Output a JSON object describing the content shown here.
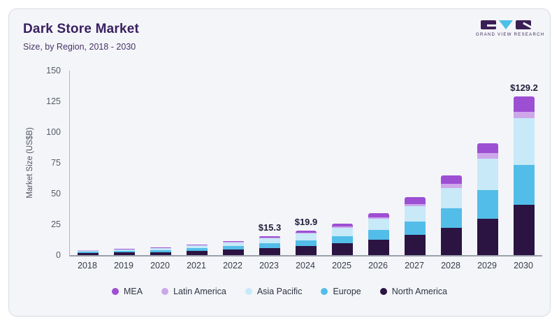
{
  "header": {
    "title": "Dark Store Market",
    "subtitle": "Size, by Region, 2018 - 2030"
  },
  "brand": {
    "logo_text": "GRAND VIEW RESEARCH",
    "logo_purple": "#3a1f55",
    "logo_cyan": "#49c1e8"
  },
  "chart_data": {
    "type": "bar",
    "stacked": true,
    "title": "Dark Store Market",
    "subtitle": "Size, by Region, 2018 - 2030",
    "xlabel": "",
    "ylabel": "Market Size (US$B)",
    "ylim": [
      0,
      150
    ],
    "yticks": [
      0,
      25,
      50,
      75,
      100,
      125,
      150
    ],
    "grid": false,
    "legend_position": "bottom",
    "categories": [
      "2018",
      "2019",
      "2020",
      "2021",
      "2022",
      "2023",
      "2024",
      "2025",
      "2026",
      "2027",
      "2028",
      "2029",
      "2030"
    ],
    "series": [
      {
        "name": "North America",
        "color": "#2b1342",
        "values": [
          1.7,
          2.0,
          2.5,
          3.5,
          4.5,
          5.9,
          7.6,
          9.6,
          12.6,
          16.5,
          22.0,
          29.5,
          41.0
        ]
      },
      {
        "name": "Europe",
        "color": "#52bde8",
        "values": [
          1.0,
          1.2,
          1.5,
          2.1,
          2.7,
          3.6,
          4.6,
          5.9,
          7.8,
          11.0,
          16.0,
          23.5,
          32.5
        ]
      },
      {
        "name": "Asia Pacific",
        "color": "#c7e9f8",
        "values": [
          1.0,
          1.2,
          1.5,
          2.2,
          2.9,
          3.9,
          5.2,
          6.7,
          9.0,
          12.2,
          16.5,
          25.5,
          38.0
        ]
      },
      {
        "name": "Latin America",
        "color": "#cda7ea",
        "values": [
          0.2,
          0.2,
          0.3,
          0.4,
          0.5,
          0.7,
          0.9,
          1.1,
          1.5,
          2.0,
          3.2,
          4.3,
          5.2
        ]
      },
      {
        "name": "MEA",
        "color": "#9d4fd4",
        "values": [
          0.3,
          0.3,
          0.5,
          0.6,
          0.9,
          1.2,
          1.6,
          2.2,
          3.1,
          5.3,
          7.3,
          8.2,
          12.5
        ]
      }
    ],
    "totals": [
      4.2,
      4.9,
      6.3,
      8.8,
      11.5,
      15.3,
      19.9,
      25.5,
      34.0,
      47.0,
      65.0,
      91.0,
      129.2
    ],
    "annotations": [
      {
        "category": "2023",
        "label": "$15.3"
      },
      {
        "category": "2024",
        "label": "$19.9"
      },
      {
        "category": "2030",
        "label": "$129.2"
      }
    ],
    "legend_order": [
      "MEA",
      "Latin America",
      "Asia Pacific",
      "Europe",
      "North America"
    ]
  }
}
